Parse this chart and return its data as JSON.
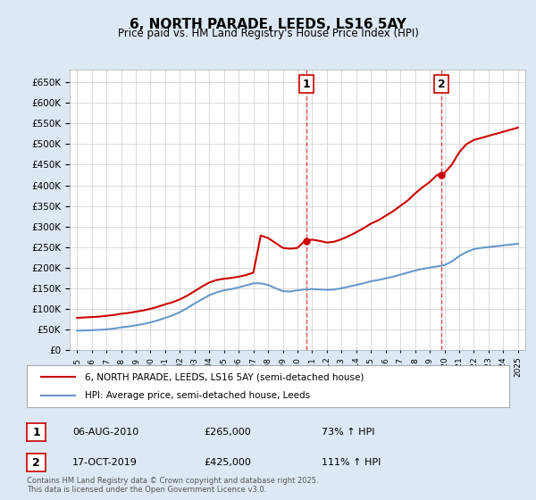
{
  "title": "6, NORTH PARADE, LEEDS, LS16 5AY",
  "subtitle": "Price paid vs. HM Land Registry's House Price Index (HPI)",
  "legend_line1": "6, NORTH PARADE, LEEDS, LS16 5AY (semi-detached house)",
  "legend_line2": "HPI: Average price, semi-detached house, Leeds",
  "footer": "Contains HM Land Registry data © Crown copyright and database right 2025.\nThis data is licensed under the Open Government Licence v3.0.",
  "sale1_date": "06-AUG-2010",
  "sale1_price": "£265,000",
  "sale1_hpi": "73% ↑ HPI",
  "sale1_label": "1",
  "sale2_date": "17-OCT-2019",
  "sale2_price": "£425,000",
  "sale2_hpi": "111% ↑ HPI",
  "sale2_label": "2",
  "sale_color": "#cc0000",
  "hpi_color": "#6699cc",
  "background_color": "#dce9f5",
  "plot_bg_color": "#ffffff",
  "grid_color": "#cccccc",
  "ylim": [
    0,
    680000
  ],
  "yticks": [
    0,
    50000,
    100000,
    150000,
    200000,
    250000,
    300000,
    350000,
    400000,
    450000,
    500000,
    550000,
    600000,
    650000
  ],
  "sale1_x": 2010.6,
  "sale1_y": 265000,
  "sale2_x": 2019.8,
  "sale2_y": 425000,
  "vline1_x": 2010.6,
  "vline2_x": 2019.8,
  "hpi_data_x": [
    1995,
    1995.5,
    1996,
    1996.5,
    1997,
    1997.5,
    1998,
    1998.5,
    1999,
    1999.5,
    2000,
    2000.5,
    2001,
    2001.5,
    2002,
    2002.5,
    2003,
    2003.5,
    2004,
    2004.5,
    2005,
    2005.5,
    2006,
    2006.5,
    2007,
    2007.5,
    2008,
    2008.5,
    2009,
    2009.5,
    2010,
    2010.5,
    2011,
    2011.5,
    2012,
    2012.5,
    2013,
    2013.5,
    2014,
    2014.5,
    2015,
    2015.5,
    2016,
    2016.5,
    2017,
    2017.5,
    2018,
    2018.5,
    2019,
    2019.5,
    2020,
    2020.5,
    2021,
    2021.5,
    2022,
    2022.5,
    2023,
    2023.5,
    2024,
    2024.5,
    2025
  ],
  "hpi_data_y": [
    47000,
    47500,
    48000,
    49000,
    50000,
    52000,
    55000,
    57000,
    60000,
    63000,
    67000,
    72000,
    78000,
    84000,
    92000,
    102000,
    113000,
    123000,
    133000,
    140000,
    145000,
    148000,
    152000,
    157000,
    162000,
    162000,
    158000,
    150000,
    143000,
    142000,
    145000,
    147000,
    148000,
    147000,
    146000,
    147000,
    150000,
    154000,
    158000,
    162000,
    167000,
    170000,
    174000,
    178000,
    183000,
    188000,
    193000,
    197000,
    200000,
    203000,
    206000,
    215000,
    228000,
    238000,
    245000,
    248000,
    250000,
    252000,
    254000,
    256000,
    258000
  ],
  "price_data_x": [
    1995,
    1995.5,
    1996,
    1996.5,
    1997,
    1997.5,
    1998,
    1998.5,
    1999,
    1999.5,
    2000,
    2000.5,
    2001,
    2001.5,
    2002,
    2002.5,
    2003,
    2003.5,
    2004,
    2004.5,
    2005,
    2005.5,
    2006,
    2006.5,
    2007,
    2007.5,
    2008,
    2008.5,
    2009,
    2009.5,
    2010,
    2010.5,
    2011,
    2011.5,
    2012,
    2012.5,
    2013,
    2013.5,
    2014,
    2014.5,
    2015,
    2015.5,
    2016,
    2016.5,
    2017,
    2017.5,
    2018,
    2018.5,
    2019,
    2019.5,
    2020,
    2020.5,
    2021,
    2021.5,
    2022,
    2022.5,
    2023,
    2023.5,
    2024,
    2024.5,
    2025
  ],
  "price_data_y": [
    78000,
    79000,
    80000,
    81000,
    83000,
    85000,
    88000,
    90000,
    93000,
    96000,
    100000,
    105000,
    111000,
    116000,
    123000,
    132000,
    143000,
    154000,
    164000,
    170000,
    173000,
    175000,
    178000,
    182000,
    188000,
    278000,
    272000,
    260000,
    248000,
    246000,
    248000,
    265000,
    268000,
    265000,
    261000,
    263000,
    269000,
    277000,
    286000,
    296000,
    307000,
    315000,
    326000,
    337000,
    350000,
    363000,
    380000,
    395000,
    408000,
    425000,
    430000,
    450000,
    480000,
    500000,
    510000,
    515000,
    520000,
    525000,
    530000,
    535000,
    540000
  ],
  "xmin": 1994.5,
  "xmax": 2025.5
}
